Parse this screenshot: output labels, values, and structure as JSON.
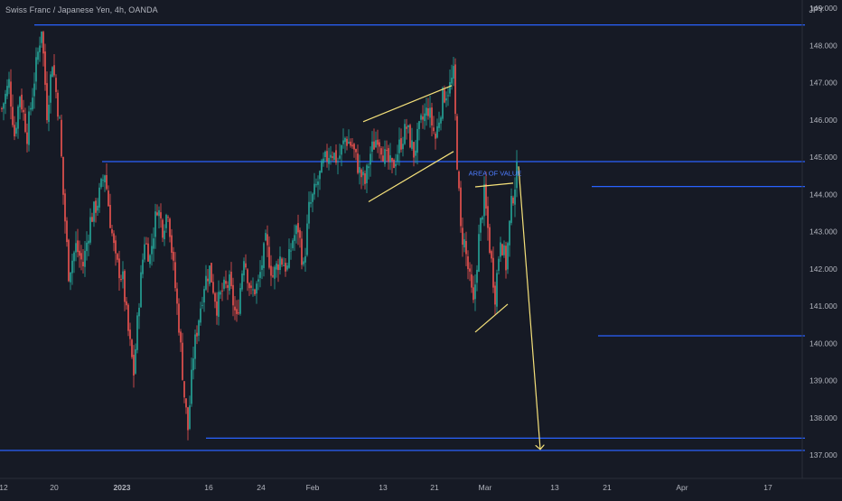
{
  "header": {
    "title": "Swiss Franc / Japanese Yen, 4h, OANDA",
    "currency": "JPY"
  },
  "colors": {
    "background": "#161a25",
    "up_candle": "#26a69a",
    "down_candle": "#ef5350",
    "level_line": "#2962ff",
    "pattern_line": "#f5e17a",
    "axis_text": "#b2b5be",
    "axis_line": "#2a2e39"
  },
  "chart_data": {
    "type": "candlestick",
    "y_unit": "JPY",
    "ylim": [
      136.7,
      149.3
    ],
    "y_ticks": [
      "149.000",
      "148.000",
      "147.000",
      "146.000",
      "145.000",
      "144.000",
      "143.000",
      "142.000",
      "141.000",
      "140.000",
      "139.000",
      "138.000",
      "137.000"
    ],
    "x_ticks": [
      "12",
      "20",
      "2023",
      "16",
      "24",
      "Feb",
      "13",
      "21",
      "Mar",
      "13",
      "21",
      "Apr",
      "17"
    ],
    "price_path": [
      [
        0,
        146.3
      ],
      [
        4,
        147.0
      ],
      [
        7,
        145.6
      ],
      [
        10,
        146.7
      ],
      [
        14,
        145.6
      ],
      [
        18,
        147.1
      ],
      [
        22,
        148.5
      ],
      [
        25,
        146.2
      ],
      [
        28,
        147.6
      ],
      [
        32,
        145.9
      ],
      [
        34,
        144.0
      ],
      [
        37,
        141.9
      ],
      [
        41,
        142.6
      ],
      [
        45,
        142.1
      ],
      [
        49,
        143.3
      ],
      [
        53,
        143.8
      ],
      [
        57,
        144.6
      ],
      [
        60,
        143.3
      ],
      [
        63,
        142.2
      ],
      [
        67,
        141.7
      ],
      [
        70,
        140.3
      ],
      [
        73,
        139.2
      ],
      [
        76,
        141.2
      ],
      [
        79,
        142.8
      ],
      [
        82,
        142.3
      ],
      [
        86,
        143.7
      ],
      [
        89,
        143.1
      ],
      [
        92,
        143.6
      ],
      [
        95,
        142.0
      ],
      [
        98,
        140.5
      ],
      [
        101,
        138.6
      ],
      [
        103,
        137.7
      ],
      [
        106,
        139.7
      ],
      [
        109,
        140.7
      ],
      [
        112,
        141.6
      ],
      [
        115,
        142.0
      ],
      [
        119,
        141.0
      ],
      [
        122,
        141.4
      ],
      [
        126,
        141.6
      ],
      [
        130,
        140.6
      ],
      [
        134,
        142.4
      ],
      [
        138,
        141.3
      ],
      [
        142,
        141.6
      ],
      [
        146,
        142.7
      ],
      [
        150,
        141.8
      ],
      [
        154,
        142.3
      ],
      [
        158,
        142.0
      ],
      [
        161,
        142.8
      ],
      [
        164,
        143.1
      ],
      [
        167,
        142.0
      ],
      [
        170,
        143.6
      ],
      [
        174,
        144.2
      ],
      [
        178,
        144.8
      ],
      [
        182,
        145.2
      ],
      [
        186,
        144.9
      ],
      [
        190,
        145.5
      ],
      [
        194,
        145.3
      ],
      [
        198,
        144.6
      ],
      [
        201,
        144.3
      ],
      [
        204,
        145.1
      ],
      [
        208,
        145.6
      ],
      [
        212,
        145.0
      ],
      [
        216,
        144.7
      ],
      [
        220,
        145.3
      ],
      [
        224,
        145.8
      ],
      [
        228,
        145.1
      ],
      [
        232,
        145.9
      ],
      [
        236,
        146.3
      ],
      [
        240,
        145.5
      ],
      [
        244,
        146.6
      ],
      [
        248,
        146.9
      ],
      [
        250,
        147.2
      ],
      [
        252,
        144.9
      ],
      [
        254,
        143.0
      ],
      [
        256,
        142.7
      ],
      [
        258,
        142.0
      ],
      [
        261,
        141.0
      ],
      [
        264,
        142.8
      ],
      [
        267,
        144.0
      ],
      [
        270,
        142.6
      ],
      [
        273,
        141.3
      ],
      [
        276,
        142.9
      ],
      [
        279,
        142.1
      ],
      [
        282,
        143.7
      ],
      [
        285,
        144.6
      ]
    ],
    "horizontal_levels": [
      148.55,
      144.88,
      144.21,
      140.2,
      137.45,
      137.12
    ],
    "annotations": [
      {
        "type": "trendline",
        "from": [
          200,
          145.95
        ],
        "to": [
          249,
          146.92
        ]
      },
      {
        "type": "trendline",
        "from": [
          203,
          143.8
        ],
        "to": [
          250,
          145.15
        ]
      },
      {
        "type": "trendline",
        "from": [
          262,
          144.2
        ],
        "to": [
          283,
          144.3
        ]
      },
      {
        "type": "trendline",
        "from": [
          262,
          140.3
        ],
        "to": [
          280,
          141.05
        ]
      },
      {
        "type": "arrow",
        "from": [
          286,
          144.75
        ],
        "to": [
          298,
          137.15
        ]
      },
      {
        "type": "text",
        "text": "AREA OF VALUE",
        "at": [
          275,
          144.5
        ]
      }
    ]
  }
}
